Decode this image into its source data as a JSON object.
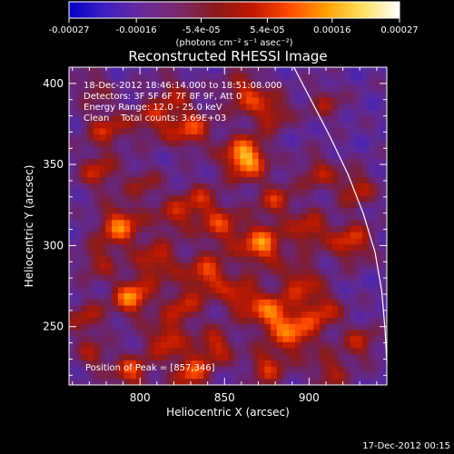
{
  "chart_data": {
    "type": "heatmap",
    "title": "Reconstructed RHESSI Image",
    "xlabel": "Heliocentric X (arcsec)",
    "ylabel": "Heliocentric Y (arcsec)",
    "xlim": [
      758,
      946
    ],
    "ylim": [
      214,
      410
    ],
    "x_ticks": [
      800,
      850,
      900
    ],
    "y_ticks": [
      250,
      300,
      350,
      400
    ],
    "colorbar": {
      "ticks": [
        "-0.00027",
        "-0.00016",
        "-5.4e-05",
        "5.4e-05",
        "0.00016",
        "0.00027"
      ],
      "tick_values": [
        -0.00027,
        -0.00016,
        -5.4e-05,
        5.4e-05,
        0.00016,
        0.00027
      ],
      "range": [
        -0.00027,
        0.00027
      ],
      "units": "(photons cm⁻² s⁻¹ asec⁻²)",
      "colors": [
        "#0000c8",
        "#4020c0",
        "#6a2a9a",
        "#7a2a6a",
        "#8a1a1a",
        "#c01800",
        "#ff4a00",
        "#ffa000",
        "#ffe060",
        "#ffffff"
      ]
    },
    "info_lines": [
      "18-Dec-2012 18:46:14.000 to 18:51:08.000",
      "Detectors: 3F 5F 6F 7F 8F 9F, Att 0",
      "Energy Range: 12.0 - 25.0 keV",
      "Clean    Total counts: 3.69E+03"
    ],
    "peak_label": "Position of Peak = [857,346]",
    "peak": [
      857,
      346
    ],
    "blobs": [
      {
        "x": 862,
        "y": 354,
        "a": 1.0,
        "s": 9
      },
      {
        "x": 830,
        "y": 372,
        "a": 0.6,
        "s": 9
      },
      {
        "x": 808,
        "y": 378,
        "a": 0.45,
        "s": 9
      },
      {
        "x": 780,
        "y": 372,
        "a": 0.5,
        "s": 9
      },
      {
        "x": 862,
        "y": 394,
        "a": 0.55,
        "s": 9
      },
      {
        "x": 878,
        "y": 382,
        "a": 0.5,
        "s": 8
      },
      {
        "x": 775,
        "y": 345,
        "a": 0.5,
        "s": 8
      },
      {
        "x": 802,
        "y": 338,
        "a": 0.35,
        "s": 8
      },
      {
        "x": 835,
        "y": 328,
        "a": 0.45,
        "s": 8
      },
      {
        "x": 880,
        "y": 328,
        "a": 0.5,
        "s": 8
      },
      {
        "x": 905,
        "y": 345,
        "a": 0.45,
        "s": 8
      },
      {
        "x": 928,
        "y": 335,
        "a": 0.5,
        "s": 8
      },
      {
        "x": 788,
        "y": 312,
        "a": 0.75,
        "s": 9
      },
      {
        "x": 820,
        "y": 318,
        "a": 0.45,
        "s": 8
      },
      {
        "x": 848,
        "y": 312,
        "a": 0.55,
        "s": 9
      },
      {
        "x": 872,
        "y": 300,
        "a": 0.8,
        "s": 9
      },
      {
        "x": 900,
        "y": 310,
        "a": 0.55,
        "s": 8
      },
      {
        "x": 925,
        "y": 302,
        "a": 0.6,
        "s": 9
      },
      {
        "x": 775,
        "y": 290,
        "a": 0.4,
        "s": 8
      },
      {
        "x": 810,
        "y": 290,
        "a": 0.55,
        "s": 9
      },
      {
        "x": 840,
        "y": 282,
        "a": 0.65,
        "s": 9
      },
      {
        "x": 895,
        "y": 278,
        "a": 0.55,
        "s": 8
      },
      {
        "x": 795,
        "y": 268,
        "a": 0.8,
        "s": 8
      },
      {
        "x": 825,
        "y": 262,
        "a": 0.5,
        "s": 8
      },
      {
        "x": 860,
        "y": 268,
        "a": 0.55,
        "s": 8
      },
      {
        "x": 878,
        "y": 258,
        "a": 0.7,
        "s": 9
      },
      {
        "x": 908,
        "y": 260,
        "a": 0.55,
        "s": 8
      },
      {
        "x": 768,
        "y": 255,
        "a": 0.45,
        "s": 8
      },
      {
        "x": 815,
        "y": 242,
        "a": 0.6,
        "s": 8
      },
      {
        "x": 845,
        "y": 238,
        "a": 0.55,
        "s": 8
      },
      {
        "x": 892,
        "y": 245,
        "a": 0.65,
        "s": 9
      },
      {
        "x": 930,
        "y": 240,
        "a": 0.45,
        "s": 8
      },
      {
        "x": 795,
        "y": 222,
        "a": 0.6,
        "s": 8
      },
      {
        "x": 830,
        "y": 222,
        "a": 0.65,
        "s": 8
      },
      {
        "x": 875,
        "y": 225,
        "a": 0.55,
        "s": 8
      },
      {
        "x": 912,
        "y": 222,
        "a": 0.45,
        "s": 8
      },
      {
        "x": 772,
        "y": 232,
        "a": 0.4,
        "s": 7
      },
      {
        "x": 820,
        "y": 395,
        "a": 0.35,
        "s": 8
      },
      {
        "x": 910,
        "y": 388,
        "a": 0.35,
        "s": 8
      },
      {
        "x": 772,
        "y": 398,
        "a": 0.35,
        "s": 7
      }
    ],
    "limb": [
      [
        888,
        416
      ],
      [
        900,
        392
      ],
      [
        912,
        368
      ],
      [
        923,
        344
      ],
      [
        932,
        320
      ],
      [
        939,
        296
      ],
      [
        943,
        272
      ],
      [
        945,
        248
      ],
      [
        946,
        228
      ]
    ]
  },
  "footer": {
    "timestamp": "17-Dec-2012 00:15"
  }
}
